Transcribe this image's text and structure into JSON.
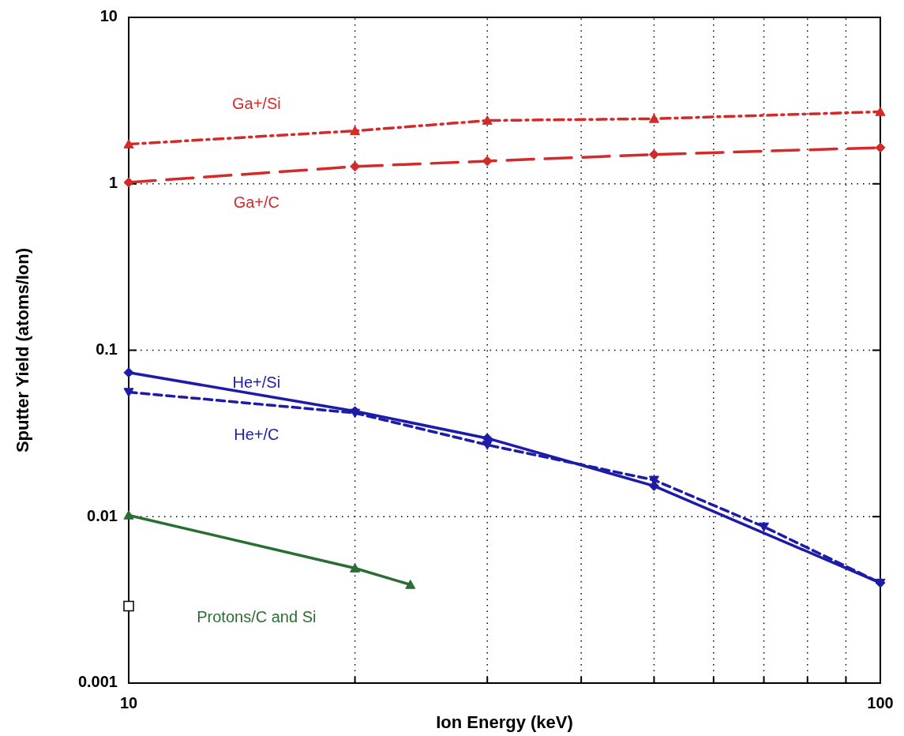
{
  "chart_data": {
    "type": "line",
    "xlabel": "Ion Energy (keV)",
    "ylabel": "Sputter Yield (atoms/Ion)",
    "log": "xy",
    "grid": true,
    "xlim": [
      10,
      100
    ],
    "xticks": [
      10,
      {
        "value": 20,
        "label": null
      },
      {
        "value": 30,
        "label": null
      },
      {
        "value": 40,
        "label": null
      },
      {
        "value": 50,
        "label": null
      },
      {
        "value": 60,
        "label": null
      },
      {
        "value": 70,
        "label": null
      },
      {
        "value": 80,
        "label": null
      },
      {
        "value": 90,
        "label": null
      },
      100
    ],
    "ylim": [
      0.001,
      10
    ],
    "yticks": [
      0.001,
      0.01,
      0.1,
      1,
      10
    ],
    "series": [
      {
        "name": "Ga+/Si",
        "color": "#d42a2a",
        "line_style": "dashdot",
        "marker": "triangle",
        "x": [
          10,
          20,
          30,
          50,
          100
        ],
        "values": [
          1.73,
          2.08,
          2.4,
          2.46,
          2.71
        ]
      },
      {
        "name": "Ga+/C",
        "color": "#d42a2a",
        "line_style": "longdash",
        "marker": "diamond",
        "x": [
          10,
          20,
          30,
          50,
          100
        ],
        "values": [
          1.02,
          1.27,
          1.37,
          1.5,
          1.65
        ]
      },
      {
        "name": "He+/Si",
        "color": "#1c1ca8",
        "line_style": "solid",
        "marker": "diamond",
        "x": [
          10,
          20,
          30,
          50,
          100
        ],
        "values": [
          0.0735,
          0.043,
          0.0296,
          0.0153,
          0.004
        ]
      },
      {
        "name": "He+/C",
        "color": "#1c1ca8",
        "line_style": "dashed",
        "marker": "triangle-down",
        "x": [
          10,
          20,
          30,
          50,
          70,
          100
        ],
        "values": [
          0.056,
          0.042,
          0.027,
          0.0166,
          0.0087,
          0.004
        ]
      },
      {
        "name": "Protons/C and Si",
        "color": "#2a6e34",
        "line_style": "solid",
        "marker": "triangle",
        "x": [
          10,
          20,
          23.7
        ],
        "values": [
          0.0102,
          0.0049,
          0.0039
        ]
      },
      {
        "type": "scatter",
        "color": "#000000",
        "marker": "square",
        "x": [
          10
        ],
        "values": [
          0.0029
        ]
      }
    ]
  }
}
